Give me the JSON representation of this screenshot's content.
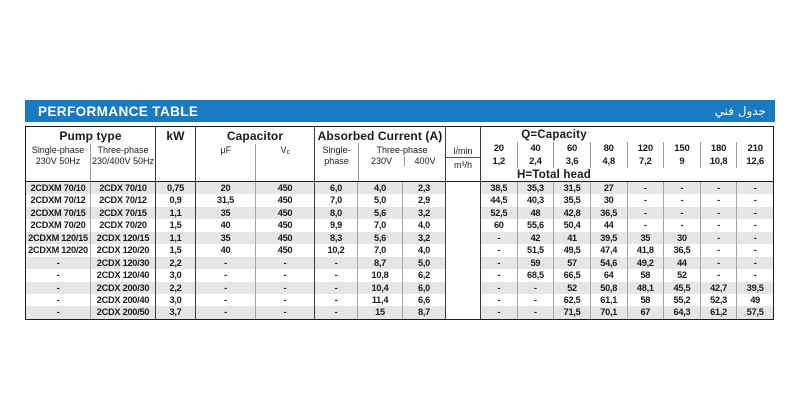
{
  "banner": {
    "title": "PERFORMANCE TABLE",
    "title_arabic": "جدول فني",
    "background_color": "#1a7ac1"
  },
  "table": {
    "header": {
      "pump_type_group": "Pump type",
      "pump_single_line1": "Single-phase",
      "pump_single_line2": "230V 50Hz",
      "pump_three_line1": "Three-phase",
      "pump_three_line2": "230/400V 50Hz",
      "kw": "kW",
      "capacitor_group": "Capacitor",
      "uf": "μF",
      "vc_base": "V",
      "vc_sub": "c",
      "current_group": "Absorbed Current (A)",
      "current_single_line1": "Single-",
      "current_single_line2": "phase",
      "current_three": "Three-phase",
      "current_230v": "230V",
      "current_400v": "400V",
      "flow_lmin": "l/min",
      "flow_m3h": "m³/h",
      "q_group": "Q=Capacity",
      "h_group": "H=Total head"
    },
    "capacity_lmin": [
      "20",
      "40",
      "60",
      "80",
      "120",
      "150",
      "180",
      "210"
    ],
    "capacity_m3h": [
      "1,2",
      "2,4",
      "3,6",
      "4,8",
      "7,2",
      "9",
      "10,8",
      "12,6"
    ],
    "rows": [
      {
        "pump_single": "2CDXM 70/10",
        "pump_three": "2CDX 70/10",
        "kw": "0,75",
        "uf": "20",
        "vc": "450",
        "i_single": "6,0",
        "i_230": "4,0",
        "i_400": "2,3",
        "head": [
          "38,5",
          "35,3",
          "31,5",
          "27",
          "-",
          "-",
          "-",
          "-"
        ]
      },
      {
        "pump_single": "2CDXM 70/12",
        "pump_three": "2CDX 70/12",
        "kw": "0,9",
        "uf": "31,5",
        "vc": "450",
        "i_single": "7,0",
        "i_230": "5,0",
        "i_400": "2,9",
        "head": [
          "44,5",
          "40,3",
          "35,5",
          "30",
          "-",
          "-",
          "-",
          "-"
        ]
      },
      {
        "pump_single": "2CDXM 70/15",
        "pump_three": "2CDX 70/15",
        "kw": "1,1",
        "uf": "35",
        "vc": "450",
        "i_single": "8,0",
        "i_230": "5,6",
        "i_400": "3,2",
        "head": [
          "52,5",
          "48",
          "42,8",
          "36,5",
          "-",
          "-",
          "-",
          "-"
        ]
      },
      {
        "pump_single": "2CDXM 70/20",
        "pump_three": "2CDX 70/20",
        "kw": "1,5",
        "uf": "40",
        "vc": "450",
        "i_single": "9,9",
        "i_230": "7,0",
        "i_400": "4,0",
        "head": [
          "60",
          "55,6",
          "50,4",
          "44",
          "-",
          "-",
          "-",
          "-"
        ]
      },
      {
        "pump_single": "2CDXM 120/15",
        "pump_three": "2CDX 120/15",
        "kw": "1,1",
        "uf": "35",
        "vc": "450",
        "i_single": "8,3",
        "i_230": "5,6",
        "i_400": "3,2",
        "head": [
          "-",
          "42",
          "41",
          "39,5",
          "35",
          "30",
          "-",
          "-"
        ]
      },
      {
        "pump_single": "2CDXM 120/20",
        "pump_three": "2CDX 120/20",
        "kw": "1,5",
        "uf": "40",
        "vc": "450",
        "i_single": "10,2",
        "i_230": "7,0",
        "i_400": "4,0",
        "head": [
          "-",
          "51,5",
          "49,5",
          "47,4",
          "41,8",
          "36,5",
          "-",
          "-"
        ]
      },
      {
        "pump_single": "-",
        "pump_three": "2CDX 120/30",
        "kw": "2,2",
        "uf": "-",
        "vc": "-",
        "i_single": "-",
        "i_230": "8,7",
        "i_400": "5,0",
        "head": [
          "-",
          "59",
          "57",
          "54,6",
          "49,2",
          "44",
          "-",
          "-"
        ]
      },
      {
        "pump_single": "-",
        "pump_three": "2CDX 120/40",
        "kw": "3,0",
        "uf": "-",
        "vc": "-",
        "i_single": "-",
        "i_230": "10,8",
        "i_400": "6,2",
        "head": [
          "-",
          "68,5",
          "66,5",
          "64",
          "58",
          "52",
          "-",
          "-"
        ]
      },
      {
        "pump_single": "-",
        "pump_three": "2CDX 200/30",
        "kw": "2,2",
        "uf": "-",
        "vc": "-",
        "i_single": "-",
        "i_230": "10,4",
        "i_400": "6,0",
        "head": [
          "-",
          "-",
          "52",
          "50,8",
          "48,1",
          "45,5",
          "42,7",
          "39,5"
        ]
      },
      {
        "pump_single": "-",
        "pump_three": "2CDX 200/40",
        "kw": "3,0",
        "uf": "-",
        "vc": "-",
        "i_single": "-",
        "i_230": "11,4",
        "i_400": "6,6",
        "head": [
          "-",
          "-",
          "62,5",
          "61,1",
          "58",
          "55,2",
          "52,3",
          "49"
        ]
      },
      {
        "pump_single": "-",
        "pump_three": "2CDX 200/50",
        "kw": "3,7",
        "uf": "-",
        "vc": "-",
        "i_single": "-",
        "i_230": "15",
        "i_400": "8,7",
        "head": [
          "-",
          "-",
          "71,5",
          "70,1",
          "67",
          "64,3",
          "61,2",
          "57,5"
        ]
      }
    ]
  }
}
